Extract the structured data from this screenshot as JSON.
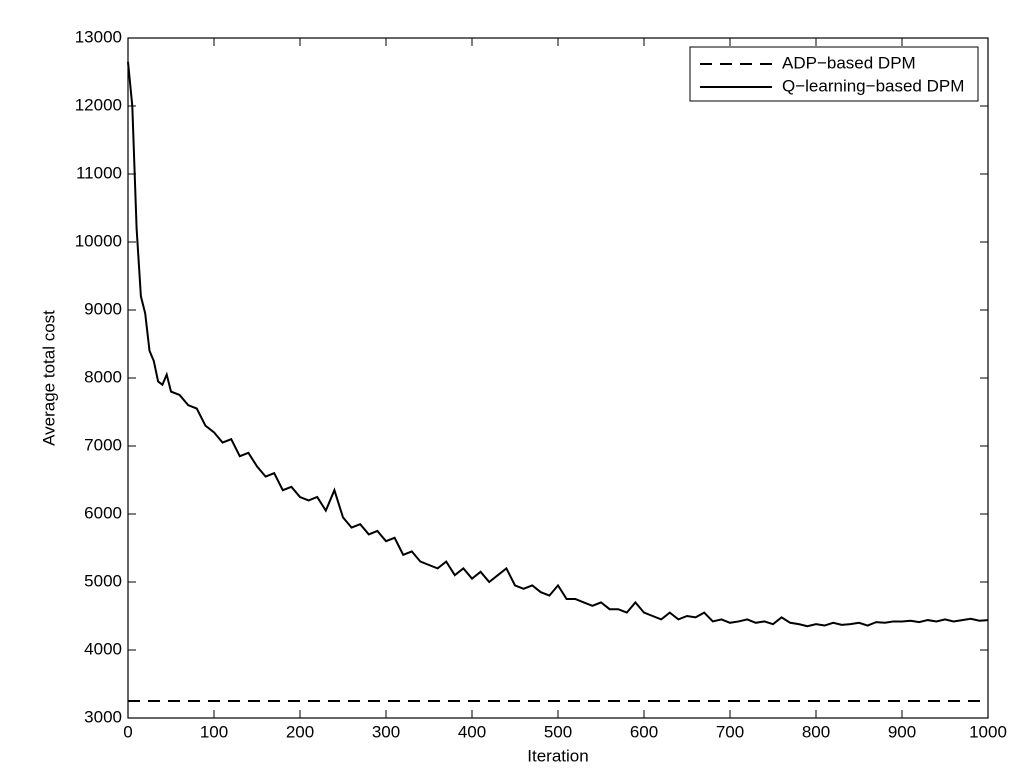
{
  "chart_data": {
    "type": "line",
    "xlabel": "Iteration",
    "ylabel": "Average total cost",
    "xlim": [
      0,
      1000
    ],
    "xticks": [
      0,
      100,
      200,
      300,
      400,
      500,
      600,
      700,
      800,
      900,
      1000
    ],
    "ylim": [
      3000,
      13000
    ],
    "yticks": [
      3000,
      4000,
      5000,
      6000,
      7000,
      8000,
      9000,
      10000,
      11000,
      12000,
      13000
    ],
    "legend": "top-right",
    "series": [
      {
        "name": "ADP−based DPM",
        "color": "#000000",
        "style": "dashed",
        "x": [
          0,
          1000
        ],
        "values": [
          3250,
          3250
        ]
      },
      {
        "name": "Q−learning−based DPM",
        "color": "#000000",
        "style": "solid",
        "x": [
          0,
          5,
          10,
          15,
          20,
          25,
          30,
          35,
          40,
          45,
          50,
          60,
          70,
          80,
          90,
          100,
          110,
          120,
          130,
          140,
          150,
          160,
          170,
          180,
          190,
          200,
          210,
          220,
          230,
          240,
          250,
          260,
          270,
          280,
          290,
          300,
          310,
          320,
          330,
          340,
          350,
          360,
          370,
          380,
          390,
          400,
          410,
          420,
          430,
          440,
          450,
          460,
          470,
          480,
          490,
          500,
          510,
          520,
          530,
          540,
          550,
          560,
          570,
          580,
          590,
          600,
          610,
          620,
          630,
          640,
          650,
          660,
          670,
          680,
          690,
          700,
          710,
          720,
          730,
          740,
          750,
          760,
          770,
          780,
          790,
          800,
          810,
          820,
          830,
          840,
          850,
          860,
          870,
          880,
          890,
          900,
          910,
          920,
          930,
          940,
          950,
          960,
          970,
          980,
          990,
          1000
        ],
        "values": [
          12650,
          12000,
          10200,
          9200,
          8950,
          8400,
          8250,
          7950,
          7900,
          8050,
          7800,
          7750,
          7600,
          7550,
          7300,
          7200,
          7050,
          7100,
          6850,
          6900,
          6700,
          6550,
          6600,
          6350,
          6400,
          6250,
          6200,
          6250,
          6050,
          6350,
          5950,
          5800,
          5850,
          5700,
          5750,
          5600,
          5650,
          5400,
          5450,
          5300,
          5250,
          5200,
          5300,
          5100,
          5200,
          5050,
          5150,
          5000,
          5100,
          5200,
          4950,
          4900,
          4950,
          4850,
          4800,
          4950,
          4750,
          4750,
          4700,
          4650,
          4700,
          4600,
          4600,
          4550,
          4700,
          4550,
          4500,
          4450,
          4550,
          4450,
          4500,
          4480,
          4550,
          4420,
          4450,
          4400,
          4420,
          4450,
          4400,
          4420,
          4380,
          4480,
          4400,
          4380,
          4350,
          4380,
          4360,
          4400,
          4370,
          4380,
          4400,
          4360,
          4410,
          4400,
          4420,
          4420,
          4430,
          4410,
          4440,
          4420,
          4450,
          4420,
          4440,
          4460,
          4430,
          4440
        ]
      }
    ]
  }
}
